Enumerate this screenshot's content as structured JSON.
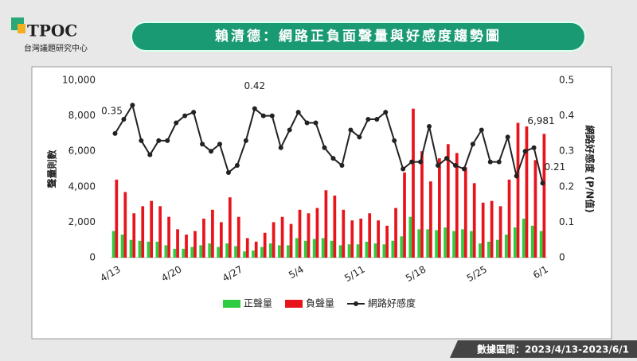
{
  "header": {
    "logo": "TPOC",
    "org": "台灣議題研究中心",
    "title": "賴清德：網路正負面聲量與好感度趨勢圖"
  },
  "footer": "數據區間：2023/4/13-2023/6/1",
  "chart_data": {
    "type": "bar-line",
    "categories": [
      "4/13",
      null,
      null,
      null,
      null,
      null,
      null,
      "4/20",
      null,
      null,
      null,
      null,
      null,
      null,
      "4/27",
      null,
      null,
      null,
      null,
      null,
      null,
      "5/4",
      null,
      null,
      null,
      null,
      null,
      null,
      "5/11",
      null,
      null,
      null,
      null,
      null,
      null,
      "5/18",
      null,
      null,
      null,
      null,
      null,
      null,
      "5/25",
      null,
      null,
      null,
      null,
      null,
      null,
      "6/1"
    ],
    "series": [
      {
        "name": "正聲量",
        "type": "bar",
        "color": "#2ecc40",
        "values": [
          1500,
          1300,
          1000,
          950,
          900,
          900,
          700,
          500,
          500,
          600,
          700,
          800,
          600,
          800,
          650,
          350,
          400,
          600,
          800,
          700,
          700,
          1100,
          950,
          1050,
          1100,
          950,
          700,
          750,
          750,
          900,
          800,
          750,
          950,
          1200,
          2300,
          1600,
          1600,
          1550,
          1700,
          1500,
          1600,
          1500,
          800,
          900,
          1000,
          1300,
          1700,
          2200,
          1800,
          1500
        ]
      },
      {
        "name": "負聲量",
        "type": "bar",
        "color": "#e8141c",
        "values": [
          4400,
          3700,
          2500,
          2900,
          3200,
          2900,
          2300,
          1600,
          1300,
          1500,
          2200,
          2700,
          2000,
          3400,
          2300,
          1100,
          900,
          1400,
          2000,
          2300,
          1900,
          2700,
          2500,
          2800,
          3800,
          3500,
          2700,
          2100,
          2200,
          2500,
          2100,
          1800,
          2800,
          4800,
          8400,
          6000,
          4300,
          5600,
          6400,
          5900,
          5100,
          4200,
          3100,
          3200,
          2900,
          4400,
          7600,
          7400,
          5500,
          6981
        ],
        "value_labels": [
          null,
          null,
          null,
          null,
          null,
          null,
          null,
          null,
          null,
          null,
          null,
          null,
          null,
          null,
          null,
          null,
          null,
          null,
          null,
          null,
          null,
          null,
          null,
          null,
          null,
          null,
          null,
          null,
          null,
          null,
          null,
          null,
          null,
          null,
          null,
          null,
          null,
          null,
          null,
          null,
          null,
          null,
          null,
          null,
          null,
          null,
          null,
          null,
          null,
          "6,981"
        ]
      },
      {
        "name": "網路好感度",
        "type": "line",
        "axis": "y2",
        "color": "#222222",
        "values": [
          0.35,
          0.39,
          0.43,
          0.33,
          0.29,
          0.33,
          0.33,
          0.38,
          0.4,
          0.41,
          0.32,
          0.3,
          0.32,
          0.24,
          0.26,
          0.33,
          0.42,
          0.4,
          0.4,
          0.31,
          0.36,
          0.41,
          0.38,
          0.38,
          0.31,
          0.28,
          0.26,
          0.36,
          0.34,
          0.39,
          0.39,
          0.41,
          0.33,
          0.25,
          0.27,
          0.27,
          0.37,
          0.26,
          0.28,
          0.26,
          0.25,
          0.32,
          0.36,
          0.27,
          0.27,
          0.34,
          0.23,
          0.3,
          0.31,
          0.21
        ],
        "value_labels": [
          0.35,
          null,
          null,
          null,
          null,
          null,
          null,
          null,
          null,
          null,
          null,
          null,
          null,
          null,
          null,
          null,
          0.42,
          null,
          null,
          null,
          null,
          null,
          null,
          null,
          null,
          null,
          null,
          null,
          null,
          null,
          null,
          null,
          null,
          null,
          null,
          null,
          null,
          null,
          null,
          null,
          null,
          null,
          null,
          null,
          null,
          null,
          null,
          null,
          null,
          0.21
        ]
      }
    ],
    "ylabel": "聲量則數",
    "y2label": "網路好感度 (P/N值)",
    "ylim": [
      0,
      10000
    ],
    "yticks": [
      0,
      {
        "value": 2000,
        "label": "2,000"
      },
      {
        "value": 4000,
        "label": "4,000"
      },
      {
        "value": 6000,
        "label": "6,000"
      },
      {
        "value": 8000,
        "label": "8,000"
      },
      {
        "value": 10000,
        "label": "10,000"
      }
    ],
    "y2lim": [
      0,
      0.5
    ],
    "y2ticks": [
      0,
      0.1,
      0.2,
      0.3,
      0.4,
      0.5
    ],
    "legend": "bottom"
  }
}
